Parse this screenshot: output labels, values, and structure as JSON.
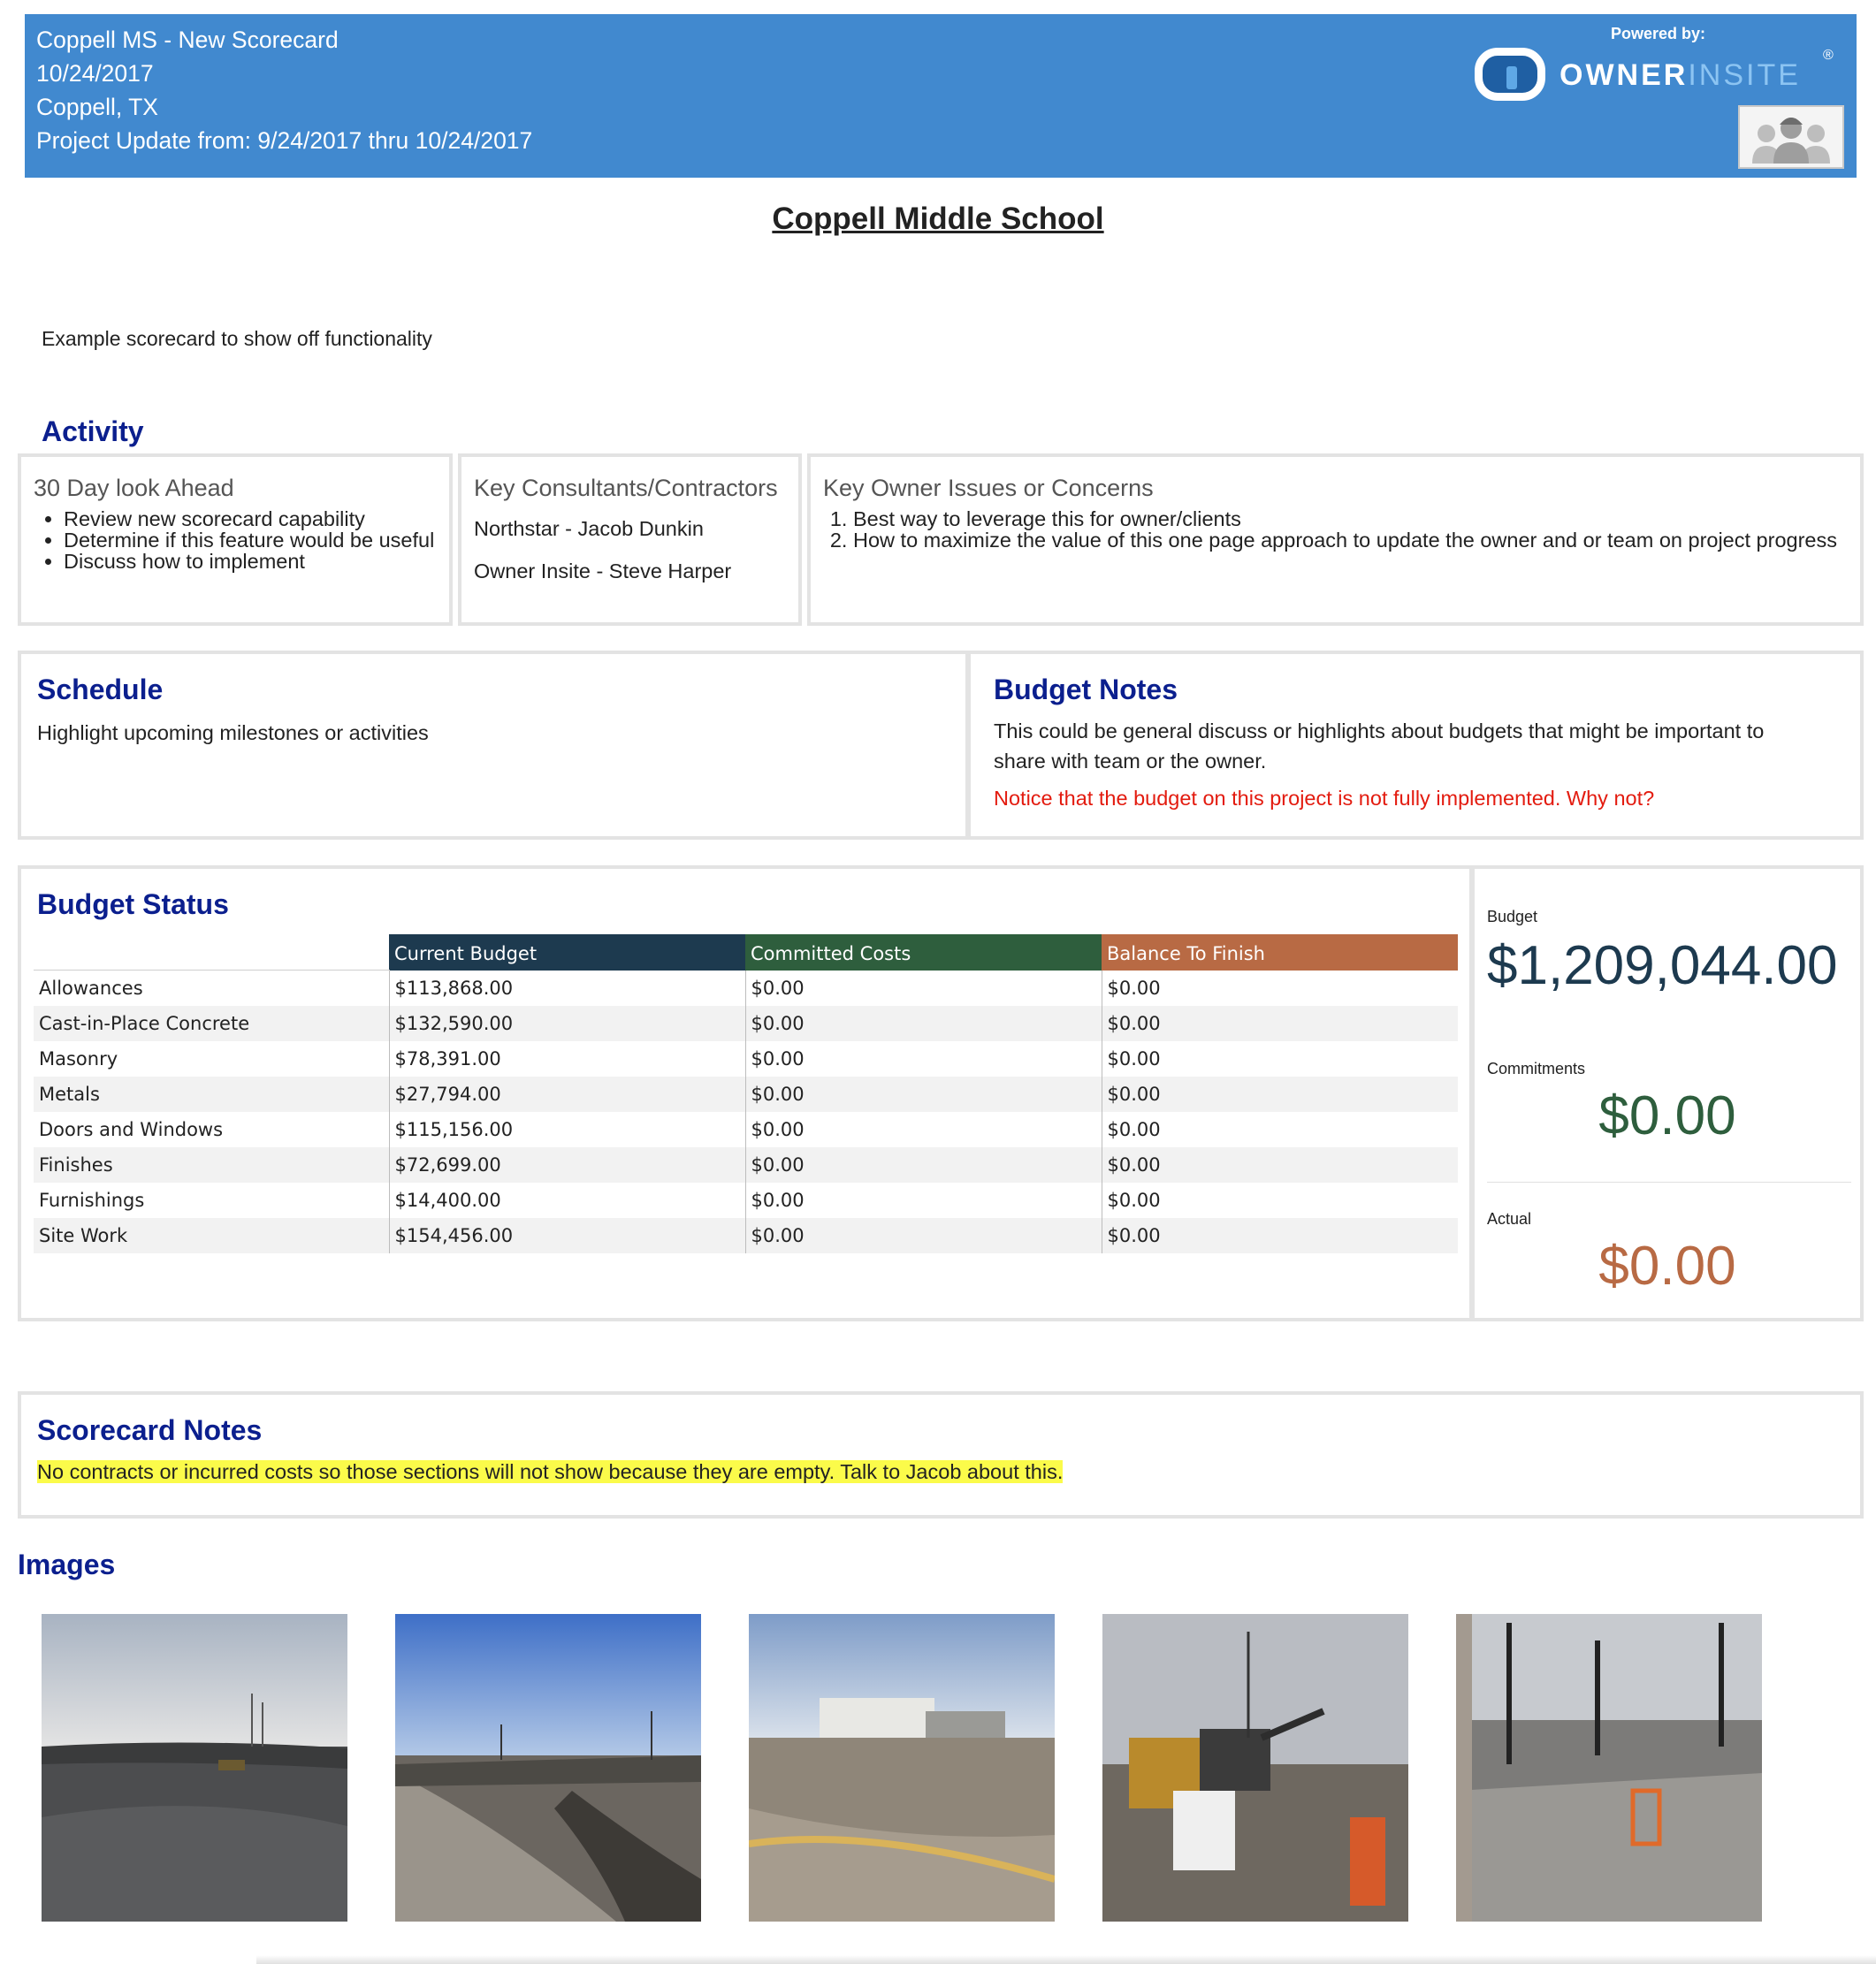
{
  "header": {
    "lines": [
      "Coppell MS - New Scorecard",
      "10/24/2017",
      "Coppell, TX",
      "Project Update from: 9/24/2017 thru 10/24/2017"
    ],
    "powered_by": "Powered by:",
    "logo_owner": "OWNER",
    "logo_insite": "INSITE",
    "logo_reg": "®"
  },
  "project_title": "Coppell Middle School",
  "description": "Example scorecard to show off functionality",
  "activity": {
    "title": "Activity",
    "look_ahead": {
      "heading": "30 Day look Ahead",
      "items": [
        "Review new scorecard capability",
        "Determine if this feature would be useful",
        "Discuss how to implement"
      ]
    },
    "consultants": {
      "heading": "Key Consultants/Contractors",
      "items": [
        "Northstar - Jacob Dunkin",
        "Owner Insite - Steve Harper"
      ]
    },
    "owner_issues": {
      "heading": "Key Owner Issues or Concerns",
      "items": [
        "Best way to leverage this for owner/clients",
        "How to maximize the value of this one page approach to update the owner and or team on project progress"
      ]
    }
  },
  "schedule": {
    "title": "Schedule",
    "text": "Highlight upcoming milestones or activities"
  },
  "budget_notes": {
    "title": "Budget Notes",
    "text": "This could be general discuss or highlights about budgets that might be important to share with team or the owner.",
    "notice": "Notice that the budget on this project is not fully implemented. Why not?",
    "notice_color": "#e31b0f"
  },
  "budget_status": {
    "title": "Budget Status",
    "columns": [
      {
        "label": "Current Budget",
        "color": "#1d3a4f"
      },
      {
        "label": "Committed Costs",
        "color": "#2e5e3d"
      },
      {
        "label": "Balance To Finish",
        "color": "#b86a44"
      }
    ],
    "rows": [
      {
        "name": "Allowances",
        "current": "$113,868.00",
        "committed": "$0.00",
        "balance": "$0.00"
      },
      {
        "name": "Cast-in-Place Concrete",
        "current": "$132,590.00",
        "committed": "$0.00",
        "balance": "$0.00"
      },
      {
        "name": "Masonry",
        "current": "$78,391.00",
        "committed": "$0.00",
        "balance": "$0.00"
      },
      {
        "name": "Metals",
        "current": "$27,794.00",
        "committed": "$0.00",
        "balance": "$0.00"
      },
      {
        "name": "Doors and Windows",
        "current": "$115,156.00",
        "committed": "$0.00",
        "balance": "$0.00"
      },
      {
        "name": "Finishes",
        "current": "$72,699.00",
        "committed": "$0.00",
        "balance": "$0.00"
      },
      {
        "name": "Furnishings",
        "current": "$14,400.00",
        "committed": "$0.00",
        "balance": "$0.00"
      },
      {
        "name": "Site Work",
        "current": "$154,456.00",
        "committed": "$0.00",
        "balance": "$0.00"
      }
    ]
  },
  "summary": {
    "budget_label": "Budget",
    "budget_value": "$1,209,044.00",
    "budget_color": "#1d3a4f",
    "commitments_label": "Commitments",
    "commitments_value": "$0.00",
    "commitments_color": "#2e5e3d",
    "actual_label": "Actual",
    "actual_value": "$0.00",
    "actual_color": "#b86a44"
  },
  "scorecard_notes": {
    "title": "Scorecard Notes",
    "text": "No contracts or incurred costs so those sections will not show because they are empty. Talk to Jacob about this.",
    "highlight_color": "#fbfb4a"
  },
  "images": {
    "title": "Images",
    "count": 5
  },
  "colors": {
    "header_bg": "#4189cf",
    "section_title": "#0b1f8e",
    "panel_border": "#e3e3e3"
  }
}
